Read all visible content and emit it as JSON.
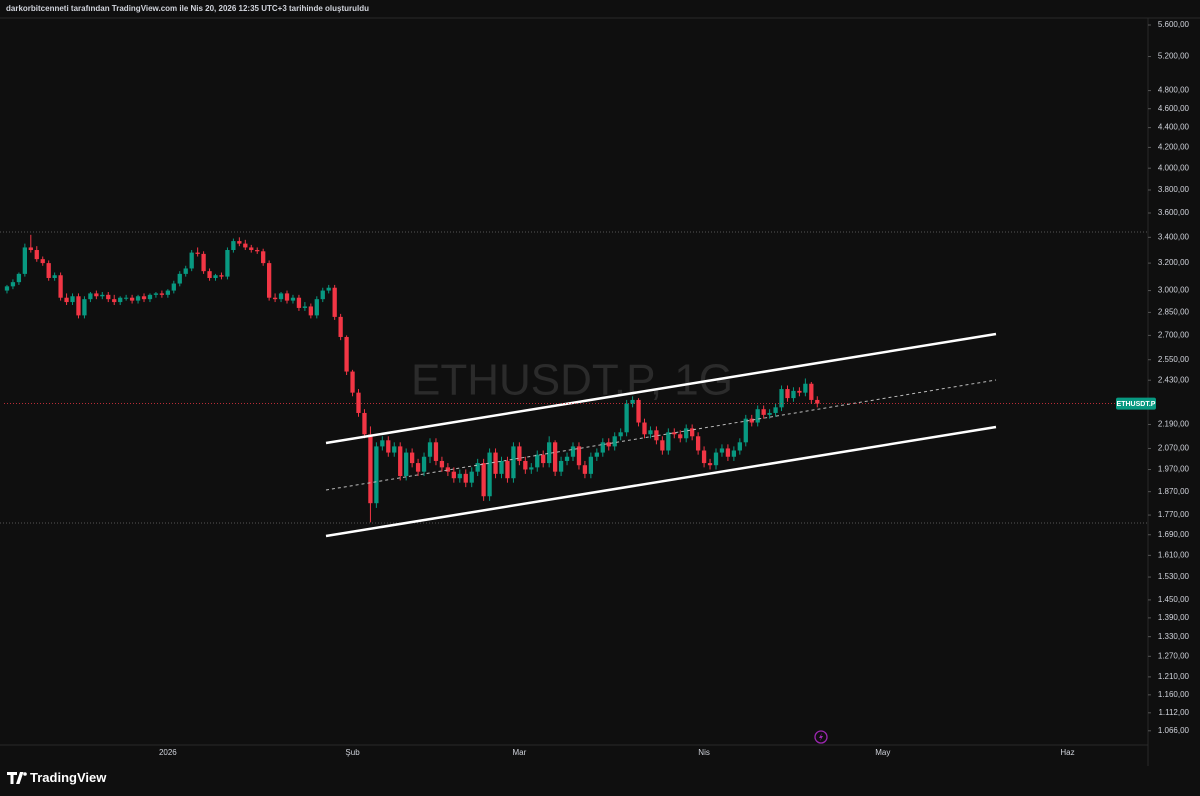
{
  "header": {
    "caption": "darkorbitcenneti tarafından TradingView.com ile Nis 20, 2026 12:35 UTC+3 tarihinde oluşturuldu"
  },
  "footer": {
    "brand": "TradingView"
  },
  "chart_data": {
    "type": "candlestick",
    "watermark": "ETHUSDT.P, 1G",
    "last_price_label": "ETHUSDT.P",
    "up_color": "#089981",
    "down_color": "#f23645",
    "log_scale": true,
    "grid": false,
    "categories": [
      null,
      null,
      null,
      null,
      null,
      null,
      null,
      null,
      null,
      null,
      null,
      null,
      null,
      null,
      null,
      null,
      null,
      null,
      null,
      null,
      null,
      null,
      null,
      null,
      null,
      null,
      null,
      "2026",
      null,
      null,
      null,
      null,
      null,
      null,
      null,
      null,
      null,
      null,
      null,
      null,
      null,
      null,
      null,
      null,
      null,
      null,
      null,
      null,
      null,
      null,
      null,
      null,
      null,
      null,
      null,
      null,
      null,
      null,
      "Şub",
      null,
      null,
      null,
      null,
      null,
      null,
      null,
      null,
      null,
      null,
      null,
      null,
      null,
      null,
      null,
      null,
      null,
      null,
      null,
      null,
      null,
      null,
      null,
      null,
      null,
      null,
      null,
      "Mar",
      null,
      null,
      null,
      null,
      null,
      null,
      null,
      null,
      null,
      null,
      null,
      null,
      null,
      null,
      null,
      null,
      null,
      null,
      null,
      null,
      null,
      null,
      null,
      null,
      null,
      null,
      null,
      null,
      null,
      null,
      "Nis",
      null,
      null,
      null,
      null,
      null,
      null,
      null,
      null,
      null,
      null,
      null,
      null,
      null,
      null,
      null,
      null,
      null,
      null,
      null,
      null,
      null,
      null,
      null,
      null,
      null,
      null,
      null,
      null,
      null,
      "May",
      null,
      null,
      null,
      null,
      null,
      null,
      null,
      null,
      null,
      null,
      null,
      null,
      null,
      null,
      null,
      null,
      null,
      null,
      null,
      null,
      null,
      null,
      null,
      null,
      null,
      null,
      null,
      null,
      null,
      null,
      "Haz",
      null,
      null,
      null,
      null,
      null,
      null,
      null,
      null,
      null,
      null,
      null,
      null
    ],
    "open": [
      3000,
      3030,
      3060,
      3120,
      3320,
      3300,
      3230,
      3200,
      3090,
      3110,
      2950,
      2920,
      2960,
      2830,
      2940,
      2980,
      2960,
      2970,
      2940,
      2920,
      2950,
      2950,
      2930,
      2960,
      2940,
      2970,
      2980,
      2970,
      3000,
      3050,
      3120,
      3160,
      3280,
      3270,
      3140,
      3090,
      3110,
      3100,
      3300,
      3370,
      3350,
      3320,
      3300,
      3290,
      3200,
      2950,
      2940,
      2980,
      2930,
      2950,
      2880,
      2890,
      2830,
      2940,
      3000,
      3020,
      2820,
      2690,
      2480,
      2360,
      2250,
      2140,
      1820,
      2080,
      2110,
      2050,
      2080,
      1940,
      2050,
      2000,
      1960,
      2030,
      2100,
      2010,
      1980,
      1960,
      1930,
      1950,
      1910,
      1960,
      2000,
      1850,
      2050,
      1950,
      2010,
      1930,
      2080,
      2010,
      1970,
      1980,
      2040,
      2000,
      2100,
      1960,
      2010,
      2030,
      2080,
      1990,
      1950,
      2030,
      2050,
      2100,
      2080,
      2130,
      2150,
      2300,
      2320,
      2200,
      2140,
      2160,
      2110,
      2060,
      2150,
      2140,
      2120,
      2170,
      2130,
      2060,
      2000,
      1990,
      2050,
      2070,
      2030,
      2060,
      2100,
      2220,
      2200,
      2270,
      2240,
      2250,
      2280,
      2380,
      2330,
      2370,
      2360,
      2410,
      2320,
      null,
      null,
      null,
      null,
      null,
      null,
      null,
      null,
      null,
      null,
      null,
      null,
      null,
      null,
      null,
      null,
      null,
      null,
      null,
      null,
      null,
      null,
      null,
      null,
      null,
      null,
      null,
      null,
      null,
      null,
      null,
      null,
      null,
      null,
      null,
      null,
      null,
      null,
      null,
      null,
      null,
      null,
      null,
      null,
      null,
      null,
      null,
      null,
      null,
      null,
      null,
      null,
      null,
      null
    ],
    "high": [
      3040,
      3080,
      3130,
      3350,
      3420,
      3330,
      3250,
      3220,
      3130,
      3130,
      2980,
      2980,
      2980,
      2960,
      2990,
      3000,
      2990,
      2990,
      2970,
      2960,
      2970,
      2970,
      2970,
      2980,
      2980,
      2990,
      3000,
      3010,
      3070,
      3140,
      3180,
      3300,
      3320,
      3290,
      3160,
      3120,
      3130,
      3320,
      3390,
      3400,
      3380,
      3340,
      3320,
      3310,
      3220,
      2980,
      2990,
      3000,
      2970,
      2970,
      2920,
      2910,
      2960,
      3020,
      3040,
      3040,
      2840,
      2700,
      2490,
      2380,
      2270,
      2180,
      2100,
      2130,
      2130,
      2100,
      2100,
      2070,
      2070,
      2020,
      2050,
      2120,
      2120,
      2030,
      2000,
      1980,
      1970,
      1970,
      1980,
      2020,
      2020,
      2070,
      2070,
      2030,
      2030,
      2100,
      2100,
      2030,
      2000,
      2060,
      2060,
      2130,
      2110,
      2030,
      2050,
      2100,
      2100,
      2010,
      2050,
      2070,
      2120,
      2120,
      2150,
      2170,
      2320,
      2340,
      2330,
      2220,
      2180,
      2180,
      2130,
      2170,
      2170,
      2160,
      2190,
      2190,
      2150,
      2080,
      2020,
      2070,
      2090,
      2090,
      2080,
      2120,
      2240,
      2240,
      2290,
      2290,
      2270,
      2300,
      2400,
      2400,
      2390,
      2390,
      2440,
      2420,
      2340,
      null,
      null,
      null,
      null,
      null,
      null,
      null,
      null,
      null,
      null,
      null,
      null,
      null,
      null,
      null,
      null,
      null,
      null,
      null,
      null,
      null,
      null,
      null,
      null,
      null,
      null,
      null,
      null,
      null,
      null,
      null,
      null,
      null,
      null,
      null,
      null,
      null,
      null,
      null,
      null,
      null,
      null,
      null,
      null,
      null,
      null,
      null,
      null,
      null,
      null,
      null,
      null,
      null,
      null
    ],
    "low": [
      2980,
      3010,
      3040,
      3100,
      3280,
      3210,
      3180,
      3070,
      3070,
      2930,
      2900,
      2900,
      2810,
      2810,
      2920,
      2940,
      2940,
      2920,
      2900,
      2900,
      2930,
      2910,
      2910,
      2920,
      2920,
      2950,
      2950,
      2950,
      2980,
      3030,
      3100,
      3140,
      3250,
      3120,
      3070,
      3070,
      3080,
      3080,
      3280,
      3330,
      3300,
      3280,
      3270,
      3180,
      2930,
      2920,
      2920,
      2910,
      2910,
      2860,
      2860,
      2810,
      2810,
      2920,
      2980,
      2800,
      2670,
      2460,
      2340,
      2230,
      2120,
      1740,
      1800,
      2060,
      2030,
      2030,
      1920,
      1920,
      1980,
      1940,
      1940,
      2000,
      1990,
      1960,
      1940,
      1910,
      1910,
      1890,
      1890,
      1940,
      1830,
      1830,
      1930,
      1930,
      1910,
      1910,
      1990,
      1950,
      1950,
      1960,
      1980,
      1980,
      1940,
      1940,
      1990,
      2010,
      1970,
      1930,
      1930,
      2010,
      2030,
      2060,
      2060,
      2110,
      2130,
      2280,
      2180,
      2120,
      2120,
      2090,
      2040,
      2040,
      2120,
      2100,
      2100,
      2110,
      2040,
      1980,
      1970,
      1970,
      2030,
      2010,
      2010,
      2040,
      2080,
      2180,
      2180,
      2220,
      2220,
      2230,
      2260,
      2310,
      2310,
      2340,
      2340,
      2300,
      2280,
      null,
      null,
      null,
      null,
      null,
      null,
      null,
      null,
      null,
      null,
      null,
      null,
      null,
      null,
      null,
      null,
      null,
      null,
      null,
      null,
      null,
      null,
      null,
      null,
      null,
      null,
      null,
      null,
      null,
      null,
      null,
      null,
      null,
      null,
      null,
      null,
      null,
      null,
      null,
      null,
      null,
      null,
      null,
      null,
      null,
      null,
      null,
      null,
      null,
      null,
      null,
      null,
      null,
      null
    ],
    "close": [
      3030,
      3060,
      3120,
      3320,
      3300,
      3230,
      3200,
      3090,
      3110,
      2950,
      2920,
      2960,
      2830,
      2940,
      2980,
      2960,
      2970,
      2940,
      2920,
      2950,
      2950,
      2930,
      2960,
      2940,
      2970,
      2980,
      2970,
      3000,
      3050,
      3120,
      3160,
      3280,
      3270,
      3140,
      3090,
      3110,
      3100,
      3300,
      3370,
      3350,
      3320,
      3300,
      3290,
      3200,
      2950,
      2940,
      2980,
      2930,
      2950,
      2880,
      2890,
      2830,
      2940,
      3000,
      3020,
      2820,
      2690,
      2480,
      2360,
      2250,
      2140,
      1820,
      2080,
      2110,
      2050,
      2080,
      1940,
      2050,
      2000,
      1960,
      2030,
      2100,
      2010,
      1980,
      1960,
      1930,
      1950,
      1910,
      1960,
      2000,
      1850,
      2050,
      1950,
      2010,
      1930,
      2080,
      2010,
      1970,
      1980,
      2040,
      2000,
      2100,
      1960,
      2010,
      2030,
      2080,
      1990,
      1950,
      2030,
      2050,
      2100,
      2080,
      2130,
      2150,
      2300,
      2320,
      2200,
      2140,
      2160,
      2110,
      2060,
      2150,
      2140,
      2120,
      2170,
      2130,
      2060,
      2000,
      1990,
      2050,
      2070,
      2030,
      2060,
      2100,
      2220,
      2200,
      2270,
      2240,
      2250,
      2280,
      2380,
      2330,
      2370,
      2360,
      2410,
      2320,
      2300,
      null,
      null,
      null,
      null,
      null,
      null,
      null,
      null,
      null,
      null,
      null,
      null,
      null,
      null,
      null,
      null,
      null,
      null,
      null,
      null,
      null,
      null,
      null,
      null,
      null,
      null,
      null,
      null,
      null,
      null,
      null,
      null,
      null,
      null,
      null,
      null,
      null,
      null,
      null,
      null,
      null,
      null,
      null,
      null,
      null,
      null,
      null,
      null,
      null,
      null,
      null,
      null,
      null,
      null
    ],
    "ylim": [
      1031,
      5693
    ],
    "yticks": [
      {
        "value": 5600,
        "label": "5.600,00"
      },
      {
        "value": 5200,
        "label": "5.200,00"
      },
      {
        "value": 4800,
        "label": "4.800,00"
      },
      {
        "value": 4600,
        "label": "4.600,00"
      },
      {
        "value": 4400,
        "label": "4.400,00"
      },
      {
        "value": 4200,
        "label": "4.200,00"
      },
      {
        "value": 4000,
        "label": "4.000,00"
      },
      {
        "value": 3800,
        "label": "3.800,00"
      },
      {
        "value": 3600,
        "label": "3.600,00"
      },
      {
        "value": 3400,
        "label": "3.400,00"
      },
      {
        "value": 3200,
        "label": "3.200,00"
      },
      {
        "value": 3000,
        "label": "3.000,00"
      },
      {
        "value": 2850,
        "label": "2.850,00"
      },
      {
        "value": 2700,
        "label": "2.700,00"
      },
      {
        "value": 2550,
        "label": "2.550,00"
      },
      {
        "value": 2430,
        "label": "2.430,00"
      },
      {
        "value": 2190,
        "label": "2.190,00"
      },
      {
        "value": 2070,
        "label": "2.070,00"
      },
      {
        "value": 1970,
        "label": "1.970,00"
      },
      {
        "value": 1870,
        "label": "1.870,00"
      },
      {
        "value": 1770,
        "label": "1.770,00"
      },
      {
        "value": 1690,
        "label": "1.690,00"
      },
      {
        "value": 1610,
        "label": "1.610,00"
      },
      {
        "value": 1530,
        "label": "1.530,00"
      },
      {
        "value": 1450,
        "label": "1.450,00"
      },
      {
        "value": 1390,
        "label": "1.390,00"
      },
      {
        "value": 1330,
        "label": "1.330,00"
      },
      {
        "value": 1270,
        "label": "1.270,00"
      },
      {
        "value": 1210,
        "label": "1.210,00"
      },
      {
        "value": 1160,
        "label": "1.160,00"
      },
      {
        "value": 1112,
        "label": "1.112,00"
      },
      {
        "value": 1066,
        "label": "1.066,00"
      }
    ]
  }
}
